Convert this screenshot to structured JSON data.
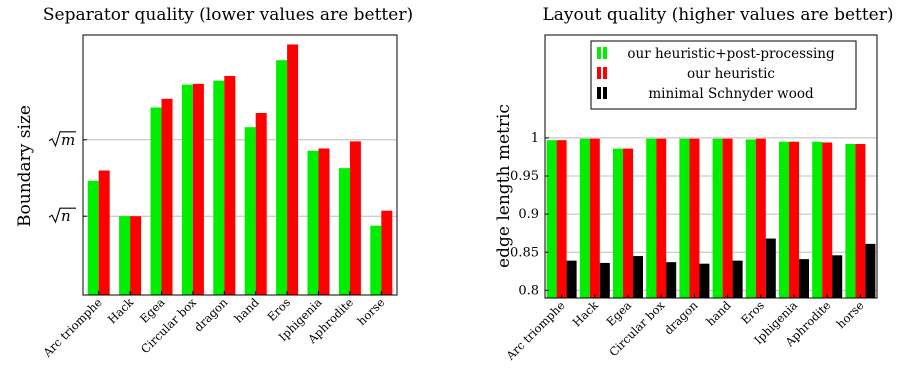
{
  "colors": {
    "green": "#00ee00",
    "red": "#ff0000",
    "black": "#000000",
    "grid": "#bdbdbd"
  },
  "chart_data": [
    {
      "type": "bar",
      "title": "Separator quality (lower values are better)",
      "ylabel": "Boundary size",
      "xlabel": "",
      "yticks": [
        {
          "label": "√n",
          "sym": "n",
          "value": 1.0
        },
        {
          "label": "√m",
          "sym": "m",
          "value": 1.97
        }
      ],
      "ylim": [
        0.0,
        3.3
      ],
      "grid": "horizontal at y ticks",
      "categories": [
        "Arc triomphe",
        "Hack",
        "Egea",
        "Circular box",
        "dragon",
        "hand",
        "Eros",
        "Iphigenia",
        "Aphrodite",
        "horse"
      ],
      "series": [
        {
          "color": "#00ee00",
          "values": [
            1.45,
            1.0,
            2.38,
            2.67,
            2.72,
            2.13,
            2.98,
            1.83,
            1.61,
            0.88
          ]
        },
        {
          "color": "#ff0000",
          "values": [
            1.58,
            1.0,
            2.49,
            2.68,
            2.78,
            2.31,
            3.18,
            1.86,
            1.95,
            1.07
          ]
        }
      ]
    },
    {
      "type": "bar",
      "title": "Layout quality (higher values are better)",
      "ylabel": "edge length metric",
      "xlabel": "",
      "ylim": [
        0.79,
        1.135
      ],
      "yticks": [
        0.8,
        0.85,
        0.9,
        0.95,
        1
      ],
      "ytick_labels": [
        "0.8",
        "0.85",
        "0.9",
        "0.95",
        "1"
      ],
      "grid": "horizontal at y ticks",
      "legend_position": "top-right",
      "categories": [
        "Arc triomphe",
        "Hack",
        "Egea",
        "Circular box",
        "dragon",
        "hand",
        "Eros",
        "Iphigenia",
        "Aphrodite",
        "horse"
      ],
      "series": [
        {
          "name": "our heuristic+post-processing",
          "color": "#00ee00",
          "values": [
            0.997,
            0.999,
            0.986,
            0.999,
            0.999,
            0.999,
            0.998,
            0.995,
            0.995,
            0.992
          ]
        },
        {
          "name": "our heuristic",
          "color": "#ff0000",
          "values": [
            0.997,
            0.999,
            0.986,
            0.999,
            0.999,
            0.999,
            0.999,
            0.995,
            0.994,
            0.992
          ]
        },
        {
          "name": "minimal Schnyder wood",
          "color": "#000000",
          "values": [
            0.839,
            0.836,
            0.845,
            0.837,
            0.835,
            0.839,
            0.868,
            0.841,
            0.846,
            0.861
          ]
        }
      ]
    }
  ]
}
